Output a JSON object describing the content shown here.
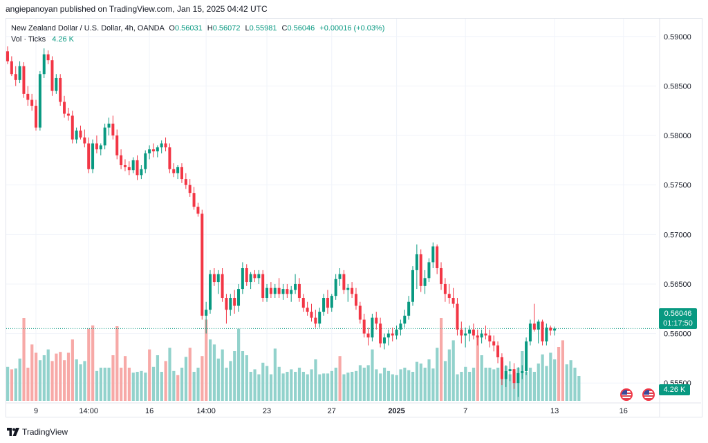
{
  "header": {
    "text": "angiepanoyan published on TradingView.com, Jan 15, 2025 04:42 UTC"
  },
  "legend": {
    "symbol": "New Zealand Dollar / U.S. Dollar, 4h, OANDA",
    "o_label": "O",
    "o_value": "0.56031",
    "h_label": "H",
    "h_value": "0.56072",
    "l_label": "L",
    "l_value": "0.55981",
    "c_label": "C",
    "c_value": "0.56046",
    "change": "+0.00016 (+0.03%)",
    "vol_label": "Vol · Ticks",
    "vol_value": "4.26 K"
  },
  "last_price": {
    "price": "0.56046",
    "countdown": "01:17:50"
  },
  "volume_tag": "4.26 K",
  "footer": {
    "brand": "TradingView"
  },
  "colors": {
    "up": "#089981",
    "down": "#f23645",
    "up_vol": "#92d2cc",
    "down_vol": "#f7a9a7",
    "grid": "#f0f3fa"
  },
  "chart_data": {
    "type": "candlestick",
    "title": "New Zealand Dollar / U.S. Dollar, 4h, OANDA",
    "y_ticks": [
      "0.59000",
      "0.58500",
      "0.58000",
      "0.57500",
      "0.57000",
      "0.56500",
      "0.56000",
      "0.55500"
    ],
    "ylim": [
      0.5532,
      0.5918
    ],
    "x_ticks": [
      {
        "label": "9",
        "index": 7
      },
      {
        "label": "14:00",
        "index": 20
      },
      {
        "label": "16",
        "index": 35
      },
      {
        "label": "14:00",
        "index": 49
      },
      {
        "label": "23",
        "index": 64
      },
      {
        "label": "27",
        "index": 80
      },
      {
        "label": "2025",
        "index": 96,
        "bold": true
      },
      {
        "label": "7",
        "index": 113
      },
      {
        "label": "13",
        "index": 135
      },
      {
        "label": "16",
        "index": 152
      }
    ],
    "x_count": 156,
    "candles": [
      [
        0.5885,
        0.589,
        0.5872,
        0.5875
      ],
      [
        0.5875,
        0.588,
        0.586,
        0.5862
      ],
      [
        0.5862,
        0.587,
        0.585,
        0.5856
      ],
      [
        0.5856,
        0.5875,
        0.5853,
        0.587
      ],
      [
        0.587,
        0.5874,
        0.5838,
        0.5842
      ],
      [
        0.5842,
        0.585,
        0.583,
        0.5836
      ],
      [
        0.5836,
        0.5842,
        0.5825,
        0.583
      ],
      [
        0.583,
        0.5836,
        0.5805,
        0.5808
      ],
      [
        0.5808,
        0.5865,
        0.5805,
        0.5862
      ],
      [
        0.5862,
        0.5888,
        0.5858,
        0.5882
      ],
      [
        0.5882,
        0.5886,
        0.5872,
        0.5876
      ],
      [
        0.5876,
        0.588,
        0.584,
        0.5845
      ],
      [
        0.5845,
        0.5862,
        0.5842,
        0.5858
      ],
      [
        0.5858,
        0.5862,
        0.583,
        0.5834
      ],
      [
        0.5834,
        0.584,
        0.5818,
        0.5822
      ],
      [
        0.5822,
        0.5828,
        0.5815,
        0.582
      ],
      [
        0.582,
        0.5825,
        0.5792,
        0.5796
      ],
      [
        0.5796,
        0.5808,
        0.5792,
        0.5805
      ],
      [
        0.5805,
        0.581,
        0.5796,
        0.5798
      ],
      [
        0.5798,
        0.5806,
        0.5788,
        0.5792
      ],
      [
        0.5792,
        0.5798,
        0.5762,
        0.5766
      ],
      [
        0.5766,
        0.5796,
        0.5762,
        0.5792
      ],
      [
        0.5792,
        0.58,
        0.5782,
        0.5786
      ],
      [
        0.5786,
        0.5792,
        0.578,
        0.579
      ],
      [
        0.579,
        0.5812,
        0.5786,
        0.5808
      ],
      [
        0.5808,
        0.5818,
        0.58,
        0.5812
      ],
      [
        0.5812,
        0.582,
        0.5796,
        0.58
      ],
      [
        0.58,
        0.5806,
        0.5776,
        0.578
      ],
      [
        0.578,
        0.5786,
        0.5766,
        0.577
      ],
      [
        0.577,
        0.5776,
        0.5764,
        0.5768
      ],
      [
        0.5768,
        0.5774,
        0.576,
        0.5765
      ],
      [
        0.5765,
        0.5778,
        0.5762,
        0.5775
      ],
      [
        0.5775,
        0.578,
        0.5755,
        0.576
      ],
      [
        0.576,
        0.577,
        0.5756,
        0.5766
      ],
      [
        0.5766,
        0.5785,
        0.5762,
        0.5782
      ],
      [
        0.5782,
        0.579,
        0.5776,
        0.5786
      ],
      [
        0.5786,
        0.5792,
        0.5778,
        0.5784
      ],
      [
        0.5784,
        0.579,
        0.5778,
        0.5788
      ],
      [
        0.5788,
        0.5795,
        0.5782,
        0.5792
      ],
      [
        0.5792,
        0.5798,
        0.5784,
        0.5788
      ],
      [
        0.5788,
        0.5792,
        0.5762,
        0.5766
      ],
      [
        0.5766,
        0.5772,
        0.5758,
        0.5762
      ],
      [
        0.5762,
        0.577,
        0.5756,
        0.5768
      ],
      [
        0.5768,
        0.5772,
        0.5752,
        0.5756
      ],
      [
        0.5756,
        0.5762,
        0.5746,
        0.575
      ],
      [
        0.575,
        0.5756,
        0.5738,
        0.5742
      ],
      [
        0.5742,
        0.5748,
        0.5725,
        0.5728
      ],
      [
        0.5728,
        0.5732,
        0.5718,
        0.5721
      ],
      [
        0.5721,
        0.5725,
        0.5614,
        0.5618
      ],
      [
        0.5618,
        0.5632,
        0.56,
        0.5624
      ],
      [
        0.5624,
        0.5664,
        0.562,
        0.566
      ],
      [
        0.566,
        0.5666,
        0.5648,
        0.5652
      ],
      [
        0.5652,
        0.5664,
        0.564,
        0.566
      ],
      [
        0.566,
        0.5666,
        0.5632,
        0.5636
      ],
      [
        0.5636,
        0.564,
        0.561,
        0.5624
      ],
      [
        0.5624,
        0.564,
        0.5618,
        0.5636
      ],
      [
        0.5636,
        0.5644,
        0.562,
        0.5628
      ],
      [
        0.5628,
        0.565,
        0.5622,
        0.5645
      ],
      [
        0.5645,
        0.5672,
        0.564,
        0.5666
      ],
      [
        0.5666,
        0.567,
        0.5648,
        0.5652
      ],
      [
        0.5652,
        0.5662,
        0.5645,
        0.566
      ],
      [
        0.566,
        0.5664,
        0.5652,
        0.5656
      ],
      [
        0.5656,
        0.5664,
        0.565,
        0.566
      ],
      [
        0.566,
        0.5664,
        0.5632,
        0.5636
      ],
      [
        0.5636,
        0.565,
        0.5632,
        0.5646
      ],
      [
        0.5646,
        0.5652,
        0.5636,
        0.564
      ],
      [
        0.564,
        0.565,
        0.5636,
        0.5646
      ],
      [
        0.5646,
        0.5656,
        0.5636,
        0.564
      ],
      [
        0.564,
        0.565,
        0.5634,
        0.5645
      ],
      [
        0.5645,
        0.565,
        0.5636,
        0.564
      ],
      [
        0.564,
        0.5648,
        0.5632,
        0.5644
      ],
      [
        0.5644,
        0.566,
        0.564,
        0.565
      ],
      [
        0.565,
        0.5656,
        0.5632,
        0.5636
      ],
      [
        0.5636,
        0.564,
        0.5622,
        0.5626
      ],
      [
        0.5626,
        0.5632,
        0.5618,
        0.5622
      ],
      [
        0.5622,
        0.563,
        0.5612,
        0.5616
      ],
      [
        0.5616,
        0.5624,
        0.5606,
        0.561
      ],
      [
        0.561,
        0.5626,
        0.5606,
        0.5622
      ],
      [
        0.5622,
        0.564,
        0.5618,
        0.5636
      ],
      [
        0.5636,
        0.5644,
        0.562,
        0.5626
      ],
      [
        0.5626,
        0.564,
        0.5622,
        0.5638
      ],
      [
        0.5638,
        0.566,
        0.5634,
        0.5655
      ],
      [
        0.5655,
        0.5666,
        0.5648,
        0.566
      ],
      [
        0.566,
        0.5664,
        0.564,
        0.5644
      ],
      [
        0.5644,
        0.565,
        0.5632,
        0.5646
      ],
      [
        0.5646,
        0.5652,
        0.5636,
        0.564
      ],
      [
        0.564,
        0.5646,
        0.5624,
        0.5628
      ],
      [
        0.5628,
        0.5632,
        0.561,
        0.5614
      ],
      [
        0.5614,
        0.562,
        0.5596,
        0.56
      ],
      [
        0.56,
        0.5606,
        0.5588,
        0.5596
      ],
      [
        0.5596,
        0.562,
        0.5592,
        0.5616
      ],
      [
        0.5616,
        0.5622,
        0.5604,
        0.561
      ],
      [
        0.561,
        0.5616,
        0.5586,
        0.559
      ],
      [
        0.559,
        0.56,
        0.5584,
        0.5596
      ],
      [
        0.5596,
        0.5604,
        0.5588,
        0.56
      ],
      [
        0.56,
        0.5606,
        0.5592,
        0.5598
      ],
      [
        0.5598,
        0.5608,
        0.5594,
        0.5604
      ],
      [
        0.5604,
        0.5614,
        0.5598,
        0.561
      ],
      [
        0.561,
        0.5624,
        0.5606,
        0.5618
      ],
      [
        0.5618,
        0.5638,
        0.5614,
        0.5632
      ],
      [
        0.5632,
        0.5668,
        0.5628,
        0.5664
      ],
      [
        0.5664,
        0.569,
        0.5645,
        0.568
      ],
      [
        0.568,
        0.5685,
        0.5642,
        0.5648
      ],
      [
        0.5648,
        0.5664,
        0.564,
        0.5656
      ],
      [
        0.5656,
        0.5676,
        0.5652,
        0.5672
      ],
      [
        0.5672,
        0.5692,
        0.5666,
        0.5688
      ],
      [
        0.5688,
        0.569,
        0.566,
        0.5666
      ],
      [
        0.5666,
        0.5672,
        0.5644,
        0.565
      ],
      [
        0.565,
        0.5656,
        0.5632,
        0.564
      ],
      [
        0.564,
        0.565,
        0.563,
        0.5636
      ],
      [
        0.5636,
        0.5646,
        0.5626,
        0.563
      ],
      [
        0.563,
        0.5636,
        0.5598,
        0.5604
      ],
      [
        0.5604,
        0.5612,
        0.559,
        0.5598
      ],
      [
        0.5598,
        0.5606,
        0.5586,
        0.56
      ],
      [
        0.56,
        0.5608,
        0.5592,
        0.5604
      ],
      [
        0.5604,
        0.561,
        0.5594,
        0.5598
      ],
      [
        0.5598,
        0.5604,
        0.5588,
        0.5596
      ],
      [
        0.5596,
        0.5604,
        0.559,
        0.56
      ],
      [
        0.56,
        0.5608,
        0.5594,
        0.5598
      ],
      [
        0.5598,
        0.5604,
        0.5586,
        0.5592
      ],
      [
        0.5592,
        0.5598,
        0.5582,
        0.5588
      ],
      [
        0.5588,
        0.5592,
        0.557,
        0.5576
      ],
      [
        0.5576,
        0.558,
        0.5548,
        0.5554
      ],
      [
        0.5554,
        0.5568,
        0.5546,
        0.5562
      ],
      [
        0.5562,
        0.5572,
        0.5552,
        0.5564
      ],
      [
        0.5564,
        0.557,
        0.5544,
        0.555
      ],
      [
        0.555,
        0.5566,
        0.5536,
        0.556
      ],
      [
        0.556,
        0.5568,
        0.5554,
        0.5562
      ],
      [
        0.5562,
        0.5596,
        0.5558,
        0.5592
      ],
      [
        0.5592,
        0.5614,
        0.5588,
        0.561
      ],
      [
        0.561,
        0.563,
        0.5602,
        0.5604
      ],
      [
        0.5604,
        0.5614,
        0.559,
        0.5612
      ],
      [
        0.5612,
        0.5614,
        0.5588,
        0.5592
      ],
      [
        0.5592,
        0.561,
        0.5588,
        0.5606
      ],
      [
        0.5606,
        0.5608,
        0.5598,
        0.5603
      ],
      [
        0.5603,
        0.5607,
        0.5598,
        0.5605
      ]
    ],
    "volume": [
      [
        41,
        "up"
      ],
      [
        38,
        "down"
      ],
      [
        39,
        "up"
      ],
      [
        51,
        "up"
      ],
      [
        100,
        "down"
      ],
      [
        40,
        "down"
      ],
      [
        68,
        "down"
      ],
      [
        58,
        "down"
      ],
      [
        49,
        "up"
      ],
      [
        55,
        "up"
      ],
      [
        62,
        "up"
      ],
      [
        48,
        "down"
      ],
      [
        57,
        "down"
      ],
      [
        59,
        "down"
      ],
      [
        49,
        "down"
      ],
      [
        58,
        "down"
      ],
      [
        74,
        "down"
      ],
      [
        50,
        "up"
      ],
      [
        44,
        "up"
      ],
      [
        48,
        "up"
      ],
      [
        87,
        "down"
      ],
      [
        91,
        "down"
      ],
      [
        36,
        "up"
      ],
      [
        40,
        "up"
      ],
      [
        40,
        "up"
      ],
      [
        40,
        "up"
      ],
      [
        55,
        "down"
      ],
      [
        90,
        "down"
      ],
      [
        40,
        "down"
      ],
      [
        54,
        "down"
      ],
      [
        40,
        "down"
      ],
      [
        34,
        "up"
      ],
      [
        35,
        "up"
      ],
      [
        36,
        "up"
      ],
      [
        34,
        "up"
      ],
      [
        62,
        "down"
      ],
      [
        41,
        "up"
      ],
      [
        55,
        "up"
      ],
      [
        35,
        "up"
      ],
      [
        48,
        "down"
      ],
      [
        64,
        "up"
      ],
      [
        36,
        "up"
      ],
      [
        31,
        "down"
      ],
      [
        40,
        "up"
      ],
      [
        53,
        "up"
      ],
      [
        64,
        "down"
      ],
      [
        35,
        "up"
      ],
      [
        40,
        "up"
      ],
      [
        54,
        "down"
      ],
      [
        98,
        "down"
      ],
      [
        74,
        "up"
      ],
      [
        68,
        "up"
      ],
      [
        51,
        "up"
      ],
      [
        62,
        "up"
      ],
      [
        40,
        "up"
      ],
      [
        48,
        "up"
      ],
      [
        60,
        "up"
      ],
      [
        87,
        "up"
      ],
      [
        60,
        "up"
      ],
      [
        55,
        "up"
      ],
      [
        35,
        "up"
      ],
      [
        38,
        "up"
      ],
      [
        32,
        "up"
      ],
      [
        46,
        "up"
      ],
      [
        42,
        "up"
      ],
      [
        32,
        "up"
      ],
      [
        63,
        "up"
      ],
      [
        41,
        "up"
      ],
      [
        33,
        "up"
      ],
      [
        35,
        "up"
      ],
      [
        38,
        "up"
      ],
      [
        35,
        "up"
      ],
      [
        40,
        "up"
      ],
      [
        35,
        "up"
      ],
      [
        32,
        "up"
      ],
      [
        38,
        "up"
      ],
      [
        50,
        "up"
      ],
      [
        32,
        "up"
      ],
      [
        33,
        "up"
      ],
      [
        33,
        "up"
      ],
      [
        36,
        "up"
      ],
      [
        40,
        "up"
      ],
      [
        54,
        "down"
      ],
      [
        32,
        "up"
      ],
      [
        34,
        "up"
      ],
      [
        35,
        "up"
      ],
      [
        36,
        "up"
      ],
      [
        43,
        "up"
      ],
      [
        40,
        "up"
      ],
      [
        43,
        "up"
      ],
      [
        62,
        "up"
      ],
      [
        38,
        "up"
      ],
      [
        33,
        "up"
      ],
      [
        40,
        "up"
      ],
      [
        36,
        "up"
      ],
      [
        32,
        "up"
      ],
      [
        31,
        "up"
      ],
      [
        38,
        "up"
      ],
      [
        40,
        "up"
      ],
      [
        37,
        "up"
      ],
      [
        35,
        "up"
      ],
      [
        47,
        "up"
      ],
      [
        45,
        "up"
      ],
      [
        40,
        "up"
      ],
      [
        50,
        "up"
      ],
      [
        39,
        "up"
      ],
      [
        64,
        "up"
      ],
      [
        100,
        "down"
      ],
      [
        48,
        "up"
      ],
      [
        62,
        "up"
      ],
      [
        73,
        "up"
      ],
      [
        32,
        "up"
      ],
      [
        35,
        "up"
      ],
      [
        41,
        "up"
      ],
      [
        35,
        "up"
      ],
      [
        40,
        "up"
      ],
      [
        78,
        "down"
      ],
      [
        55,
        "up"
      ],
      [
        40,
        "up"
      ],
      [
        40,
        "up"
      ],
      [
        38,
        "up"
      ],
      [
        40,
        "up"
      ],
      [
        48,
        "up"
      ],
      [
        42,
        "up"
      ],
      [
        32,
        "up"
      ],
      [
        35,
        "up"
      ],
      [
        40,
        "up"
      ],
      [
        60,
        "up"
      ],
      [
        35,
        "up"
      ],
      [
        40,
        "up"
      ],
      [
        35,
        "up"
      ],
      [
        45,
        "up"
      ],
      [
        56,
        "up"
      ],
      [
        42,
        "up"
      ],
      [
        58,
        "up"
      ],
      [
        50,
        "up"
      ],
      [
        65,
        "down"
      ],
      [
        73,
        "down"
      ],
      [
        44,
        "up"
      ],
      [
        49,
        "up"
      ],
      [
        40,
        "up"
      ],
      [
        30,
        "up"
      ]
    ]
  }
}
